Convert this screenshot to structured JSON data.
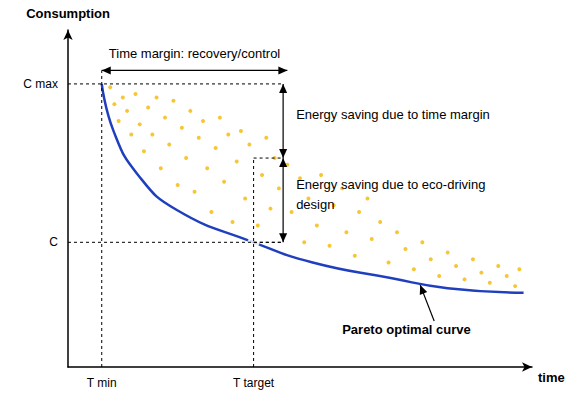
{
  "chart_data": {
    "type": "scatter",
    "x_label": "time",
    "y_label": "Consumption",
    "xlim": [
      0,
      11
    ],
    "ylim": [
      0,
      10
    ],
    "xticks": [
      {
        "value": 0.8,
        "label": "T min"
      },
      {
        "value": 4.4,
        "label": "T target"
      }
    ],
    "yticks": [
      {
        "value": 3.7,
        "label": "C"
      },
      {
        "value": 8.4,
        "label": "C max"
      }
    ],
    "grid": false,
    "series": [
      {
        "type": "scatter",
        "color": "#f5b800",
        "marker": "circle",
        "x": [
          1.0,
          1.1,
          1.2,
          1.3,
          1.4,
          1.5,
          1.6,
          1.7,
          1.8,
          1.9,
          2.0,
          2.1,
          2.2,
          2.3,
          2.4,
          2.5,
          2.6,
          2.7,
          2.8,
          2.9,
          3.0,
          3.1,
          3.2,
          3.3,
          3.4,
          3.5,
          3.6,
          3.7,
          3.8,
          3.9,
          4.0,
          4.1,
          4.2,
          4.3,
          4.5,
          4.6,
          4.7,
          4.8,
          4.9,
          5.0,
          5.1,
          5.2,
          5.3,
          5.5,
          5.6,
          5.7,
          5.9,
          6.0,
          6.2,
          6.3,
          6.5,
          6.6,
          6.8,
          6.9,
          7.1,
          7.2,
          7.4,
          7.6,
          7.8,
          8.0,
          8.2,
          8.4,
          8.6,
          8.8,
          9.0,
          9.2,
          9.4,
          9.6,
          9.8,
          10.0,
          10.2,
          10.4,
          10.6,
          10.7
        ],
        "values": [
          8.3,
          7.8,
          7.3,
          8.0,
          7.6,
          6.9,
          8.1,
          7.2,
          6.4,
          7.7,
          6.9,
          8.0,
          5.9,
          7.4,
          6.6,
          7.9,
          5.4,
          7.1,
          6.2,
          7.6,
          5.2,
          6.8,
          7.3,
          5.9,
          4.6,
          6.5,
          7.4,
          5.5,
          6.9,
          4.3,
          6.1,
          7.0,
          5.0,
          6.6,
          4.2,
          5.7,
          6.8,
          4.7,
          6.2,
          5.3,
          3.9,
          6.0,
          4.6,
          5.6,
          3.7,
          5.0,
          4.2,
          5.7,
          3.6,
          4.8,
          5.3,
          4.0,
          3.3,
          4.6,
          5.0,
          3.8,
          4.3,
          3.1,
          4.0,
          3.5,
          2.9,
          3.7,
          3.2,
          2.7,
          3.4,
          3.0,
          2.6,
          3.2,
          2.8,
          2.5,
          3.0,
          2.7,
          2.4,
          2.9
        ]
      },
      {
        "type": "line",
        "color": "#1f3fbf",
        "line_style": "solid",
        "x": [
          0.8,
          1.08,
          1.66,
          2.58,
          4.4,
          5.8,
          7.65,
          9.0,
          10.8
        ],
        "values": [
          8.4,
          7.0,
          5.7,
          4.66,
          3.7,
          3.1,
          2.64,
          2.34,
          2.2
        ]
      },
      {
        "type": "scatter",
        "color": "#1f3fbf",
        "marker": "open_circle",
        "x": [
          4.4,
          4.4
        ],
        "values": [
          6.2,
          3.7
        ]
      }
    ],
    "annotations": [
      {
        "text": "Time margin: recovery/control",
        "x": [
          0.8,
          5.2
        ],
        "y": 8.8
      },
      {
        "text": "Energy saving due to time margin",
        "x": 5.1,
        "y": [
          8.4,
          6.2
        ]
      },
      {
        "text": "Energy saving due to eco-driving design",
        "x": 5.1,
        "y": [
          6.2,
          3.7
        ]
      },
      {
        "text": "Pareto optimal curve",
        "x": 6.5,
        "y": 1.1,
        "arrow_to": [
          8.35,
          2.43
        ]
      }
    ]
  }
}
